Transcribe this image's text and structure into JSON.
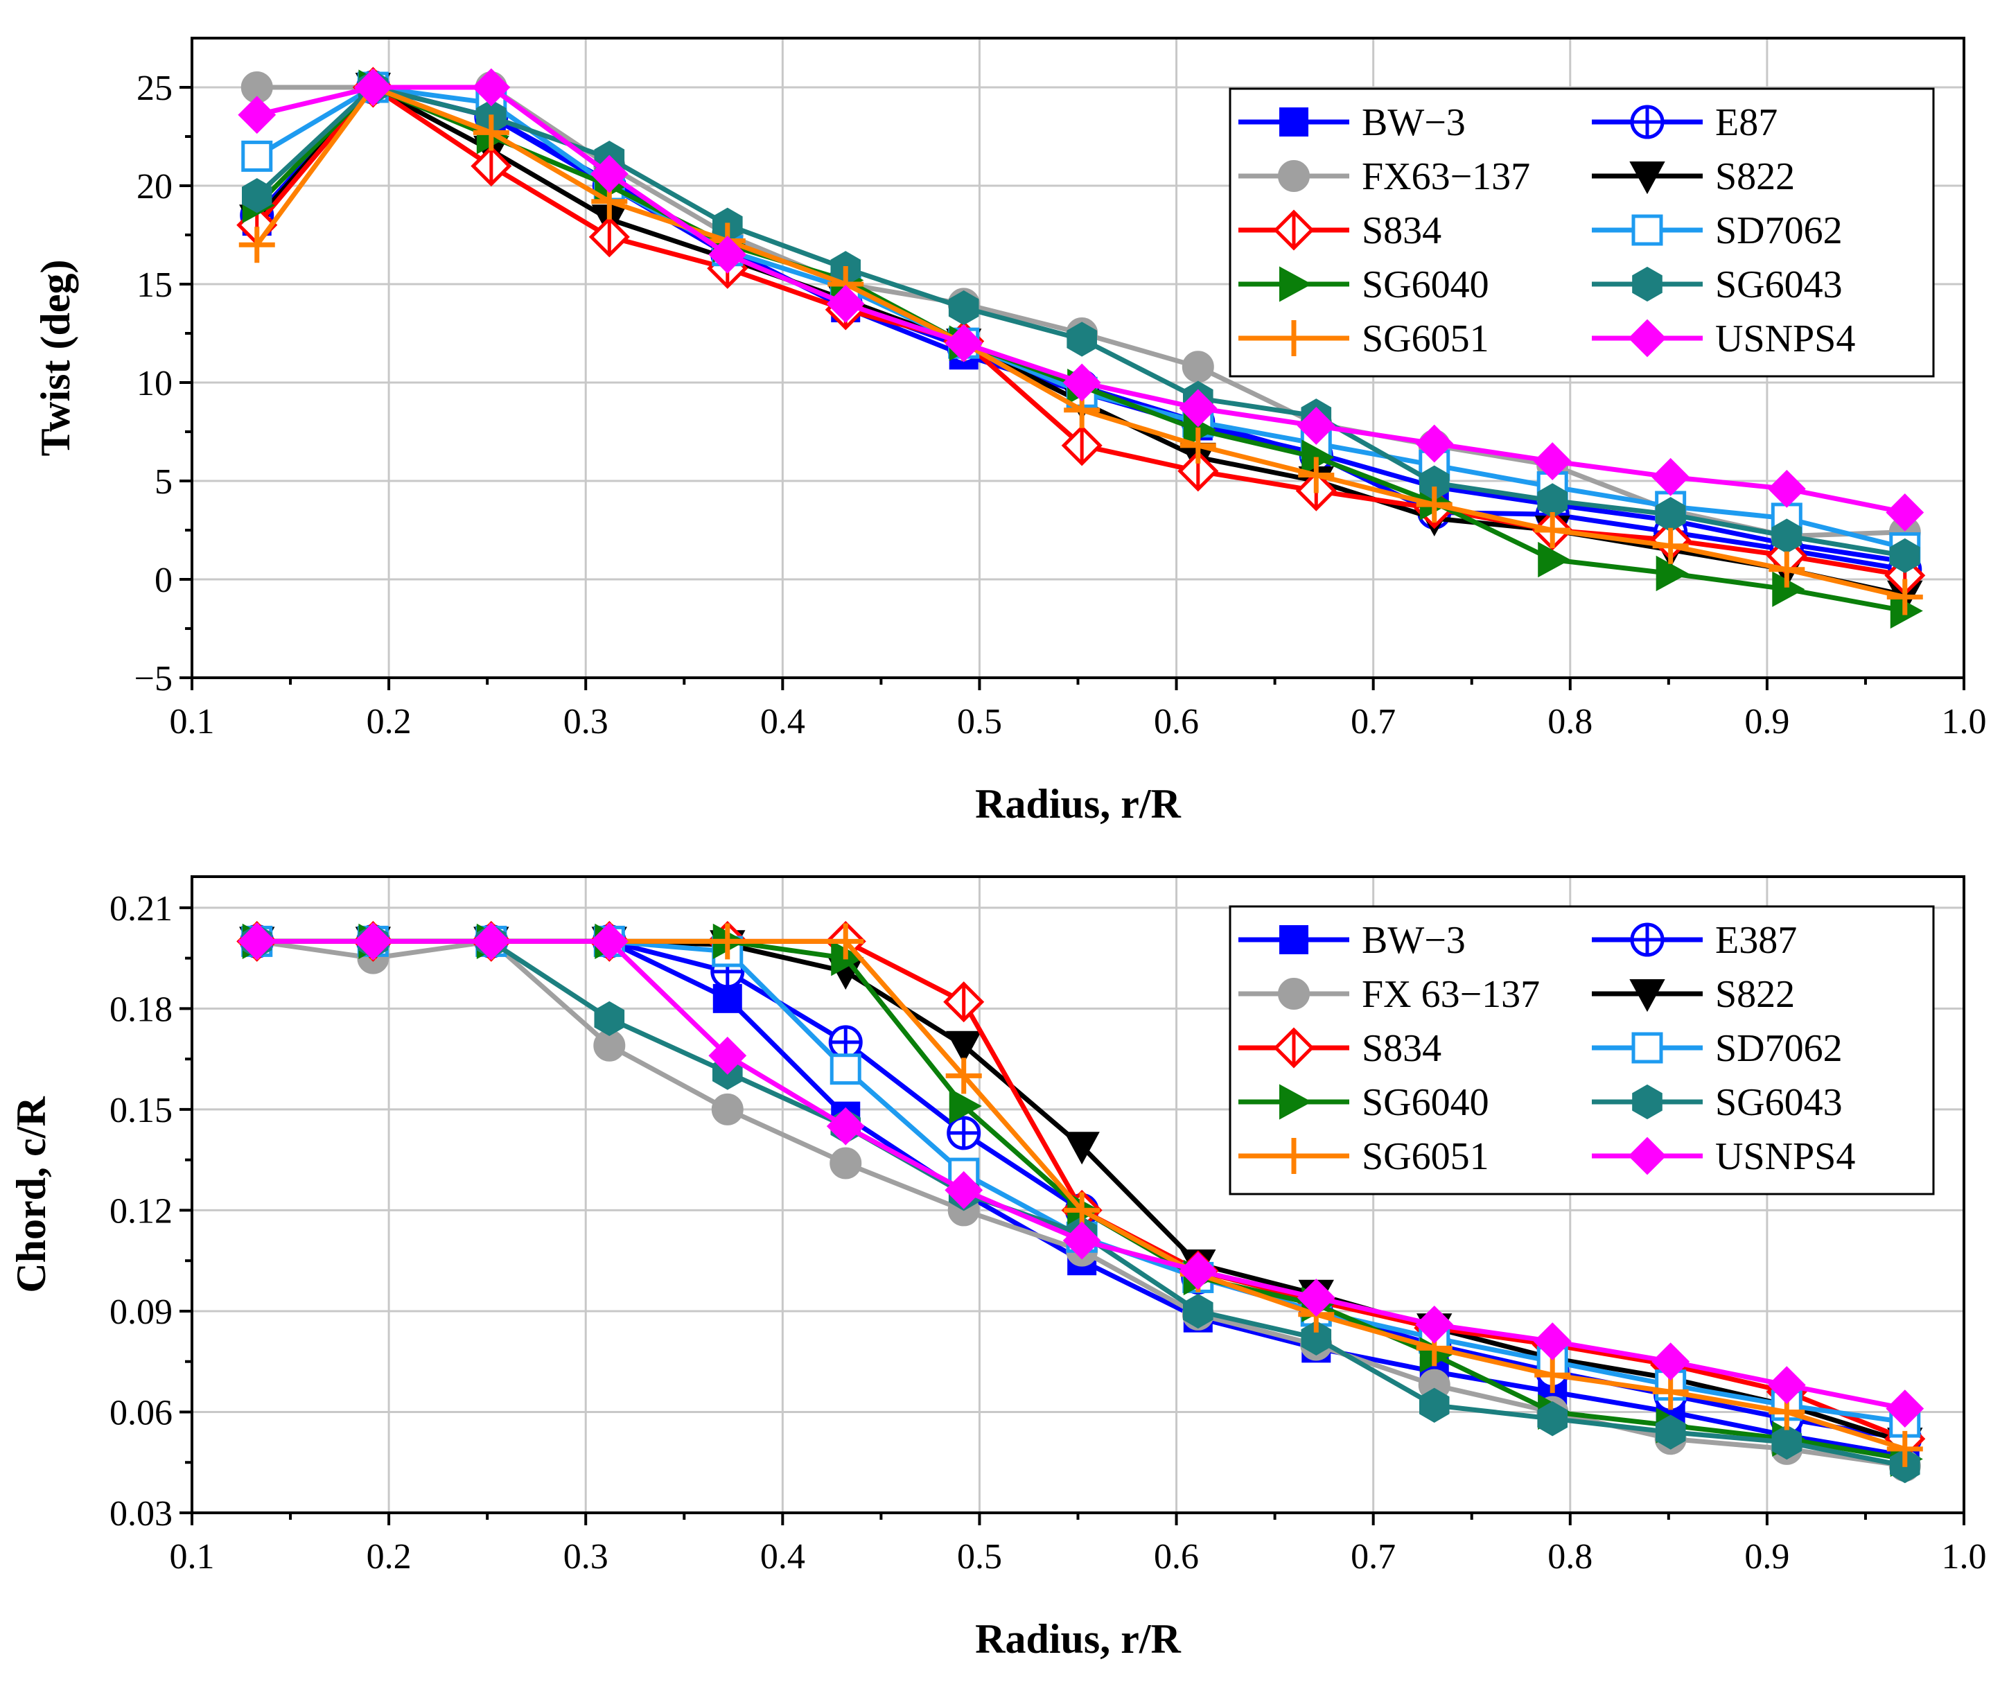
{
  "chart_data": [
    {
      "type": "line",
      "id": "twist",
      "xlabel": "Radius, r/R",
      "ylabel": "Twist (deg)",
      "xlim": [
        0.1,
        1.0
      ],
      "ylim": [
        -5,
        27.5
      ],
      "xticks": [
        "0.1",
        "0.2",
        "0.3",
        "0.4",
        "0.5",
        "0.6",
        "0.7",
        "0.8",
        "0.9",
        "1.0"
      ],
      "yticks": [
        "−5",
        "0",
        "5",
        "10",
        "15",
        "20",
        "25"
      ],
      "ytick_values": [
        -5,
        0,
        5,
        10,
        15,
        20,
        25
      ],
      "grid": true,
      "legend_position": "top-right",
      "x": [
        0.133,
        0.192,
        0.252,
        0.312,
        0.372,
        0.432,
        0.492,
        0.552,
        0.611,
        0.671,
        0.731,
        0.791,
        0.851,
        0.91,
        0.97
      ],
      "series": [
        {
          "name": "BW−3",
          "color": "#0000ff",
          "marker": "square",
          "values": [
            18.2,
            25,
            23.5,
            20.2,
            16.8,
            13.8,
            11.4,
            9.5,
            7.8,
            6.4,
            4.7,
            3.8,
            3.0,
            1.8,
            0.9
          ]
        },
        {
          "name": "E87",
          "color": "#0000ff",
          "marker": "circle-plus",
          "values": [
            18.5,
            25,
            23.5,
            20.0,
            16.5,
            14.0,
            11.8,
            9.8,
            8.0,
            6.3,
            3.4,
            3.3,
            2.4,
            1.5,
            0.5
          ]
        },
        {
          "name": "FX63−137",
          "color": "#a0a0a0",
          "marker": "circle",
          "values": [
            25,
            25,
            25,
            21.0,
            17.5,
            15.0,
            14.0,
            12.5,
            10.8,
            7.9,
            6.8,
            5.8,
            3.5,
            2.2,
            2.4
          ]
        },
        {
          "name": "S822",
          "color": "#000000",
          "marker": "triangle-down",
          "values": [
            18.3,
            25,
            21.8,
            18.3,
            16.3,
            14.2,
            12.0,
            9.0,
            6.2,
            5.0,
            3.1,
            2.5,
            1.5,
            0.5,
            -0.8
          ]
        },
        {
          "name": "S834",
          "color": "#ff0000",
          "marker": "diamond-open",
          "values": [
            18.0,
            25,
            21.0,
            17.4,
            15.8,
            13.7,
            12.1,
            6.8,
            5.5,
            4.5,
            3.6,
            2.5,
            2.0,
            1.2,
            0.2
          ]
        },
        {
          "name": "SD7062",
          "color": "#1e9bf0",
          "marker": "square-open",
          "values": [
            21.5,
            25,
            24.2,
            20.0,
            16.7,
            14.8,
            12.0,
            9.5,
            8.0,
            6.9,
            5.8,
            4.7,
            3.7,
            3.1,
            1.6
          ]
        },
        {
          "name": "SG6040",
          "color": "#0a7f0a",
          "marker": "triangle-right",
          "values": [
            19.0,
            25,
            22.5,
            20.0,
            17.0,
            15.2,
            12.0,
            9.8,
            7.6,
            6.2,
            3.9,
            1.0,
            0.3,
            -0.5,
            -1.6
          ]
        },
        {
          "name": "SG6043",
          "color": "#1c7f7f",
          "marker": "hexagon",
          "values": [
            19.5,
            25,
            23.5,
            21.4,
            18.0,
            15.8,
            13.8,
            12.2,
            9.2,
            8.3,
            4.9,
            4.0,
            3.3,
            2.2,
            1.2
          ]
        },
        {
          "name": "SG6051",
          "color": "#ff8000",
          "marker": "plus",
          "values": [
            17.0,
            25,
            22.7,
            19.2,
            17.2,
            15.0,
            12.0,
            8.6,
            6.8,
            5.3,
            3.8,
            2.5,
            1.7,
            0.5,
            -0.9
          ]
        },
        {
          "name": "USNPS4",
          "color": "#ff00ff",
          "marker": "diamond",
          "values": [
            23.6,
            25,
            25,
            20.6,
            16.5,
            14.0,
            12.0,
            10.0,
            8.7,
            7.8,
            6.9,
            6.0,
            5.2,
            4.6,
            3.4
          ]
        }
      ]
    },
    {
      "type": "line",
      "id": "chord",
      "xlabel": "Radius, r/R",
      "ylabel": "Chord, c/R",
      "xlim": [
        0.1,
        1.0
      ],
      "ylim": [
        0.03,
        0.21925
      ],
      "xticks": [
        "0.1",
        "0.2",
        "0.3",
        "0.4",
        "0.5",
        "0.6",
        "0.7",
        "0.8",
        "0.9",
        "1.0"
      ],
      "yticks": [
        "0.03",
        "0.06",
        "0.09",
        "0.12",
        "0.15",
        "0.18",
        "0.21"
      ],
      "ytick_values": [
        0.03,
        0.06,
        0.09,
        0.12,
        0.15,
        0.18,
        0.21
      ],
      "grid": true,
      "legend_position": "top-right",
      "x": [
        0.133,
        0.192,
        0.252,
        0.312,
        0.372,
        0.432,
        0.492,
        0.552,
        0.611,
        0.671,
        0.731,
        0.791,
        0.851,
        0.91,
        0.97
      ],
      "series": [
        {
          "name": "BW−3",
          "color": "#0000ff",
          "marker": "square",
          "values": [
            0.2,
            0.2,
            0.2,
            0.2,
            0.183,
            0.148,
            0.125,
            0.105,
            0.088,
            0.079,
            0.072,
            0.066,
            0.06,
            0.053,
            0.047
          ]
        },
        {
          "name": "E387",
          "color": "#0000ff",
          "marker": "circle-plus",
          "values": [
            0.2,
            0.2,
            0.2,
            0.2,
            0.191,
            0.17,
            0.143,
            0.12,
            0.1,
            0.09,
            0.08,
            0.072,
            0.065,
            0.058,
            0.052
          ]
        },
        {
          "name": "FX 63−137",
          "color": "#a0a0a0",
          "marker": "circle",
          "values": [
            0.2,
            0.195,
            0.2,
            0.169,
            0.15,
            0.134,
            0.12,
            0.108,
            0.089,
            0.08,
            0.068,
            0.06,
            0.052,
            0.049,
            0.044
          ]
        },
        {
          "name": "S822",
          "color": "#000000",
          "marker": "triangle-down",
          "values": [
            0.2,
            0.2,
            0.2,
            0.2,
            0.199,
            0.191,
            0.169,
            0.139,
            0.104,
            0.095,
            0.085,
            0.076,
            0.07,
            0.062,
            0.051
          ]
        },
        {
          "name": "S834",
          "color": "#ff0000",
          "marker": "diamond-open",
          "values": [
            0.2,
            0.2,
            0.2,
            0.2,
            0.2,
            0.2,
            0.182,
            0.12,
            0.102,
            0.093,
            0.085,
            0.08,
            0.074,
            0.066,
            0.052
          ]
        },
        {
          "name": "SD7062",
          "color": "#1e9bf0",
          "marker": "square-open",
          "values": [
            0.2,
            0.2,
            0.2,
            0.2,
            0.197,
            0.162,
            0.131,
            0.112,
            0.1,
            0.09,
            0.082,
            0.075,
            0.068,
            0.062,
            0.057
          ]
        },
        {
          "name": "SG6040",
          "color": "#0a7f0a",
          "marker": "triangle-right",
          "values": [
            0.2,
            0.2,
            0.2,
            0.2,
            0.2,
            0.195,
            0.151,
            0.12,
            0.1,
            0.092,
            0.077,
            0.06,
            0.056,
            0.052,
            0.046
          ]
        },
        {
          "name": "SG6043",
          "color": "#1c7f7f",
          "marker": "hexagon",
          "values": [
            0.2,
            0.2,
            0.2,
            0.177,
            0.161,
            0.145,
            0.125,
            0.113,
            0.09,
            0.082,
            0.062,
            0.058,
            0.054,
            0.051,
            0.044
          ]
        },
        {
          "name": "SG6051",
          "color": "#ff8000",
          "marker": "plus",
          "values": [
            0.2,
            0.2,
            0.2,
            0.2,
            0.2,
            0.2,
            0.16,
            0.12,
            0.101,
            0.089,
            0.079,
            0.071,
            0.066,
            0.06,
            0.049
          ]
        },
        {
          "name": "USNPS4",
          "color": "#ff00ff",
          "marker": "diamond",
          "values": [
            0.2,
            0.2,
            0.2,
            0.2,
            0.166,
            0.145,
            0.126,
            0.111,
            0.102,
            0.094,
            0.086,
            0.081,
            0.075,
            0.068,
            0.061
          ]
        }
      ]
    }
  ]
}
